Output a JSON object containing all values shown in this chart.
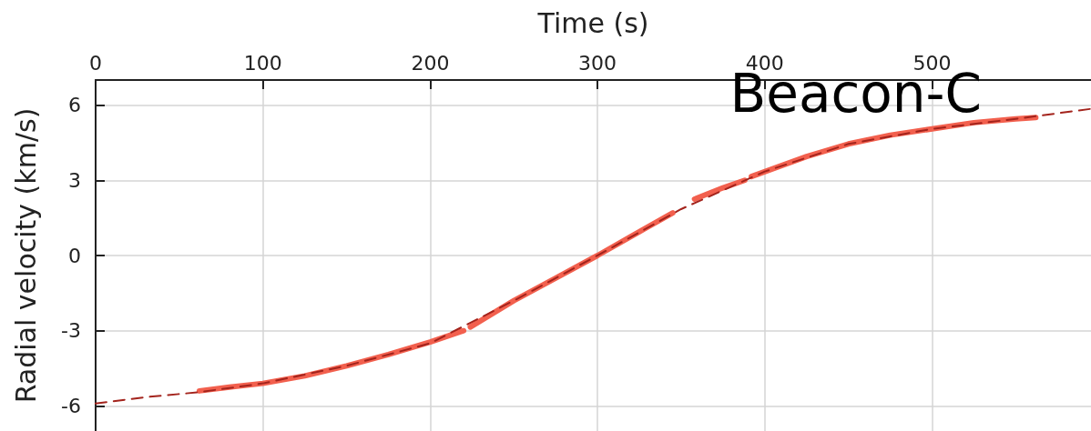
{
  "chart_data": {
    "type": "line",
    "xlabel": "Time (s)",
    "ylabel": "Radial velocity (km/s)",
    "annotations": [
      "Beacon-C"
    ],
    "xlim": [
      0,
      595
    ],
    "xticks": [
      0,
      100,
      200,
      300,
      400,
      500
    ],
    "ylim": [
      -7,
      7
    ],
    "yticks": [
      -6,
      -3,
      0,
      3,
      6
    ],
    "grid": true,
    "marker": "none",
    "series": [
      {
        "color": "#f2604e",
        "line_style": "solid",
        "x": [
          62,
          80,
          100,
          125,
          150,
          175,
          200,
          220,
          222,
          224,
          250,
          275,
          300,
          325,
          345,
          350,
          358,
          375,
          388,
          390,
          392,
          425,
          450,
          475,
          500,
          525,
          550,
          562
        ],
        "values": [
          -5.4,
          -5.25,
          -5.1,
          -4.8,
          -4.4,
          -3.95,
          -3.45,
          -3.0,
          null,
          -2.85,
          -1.8,
          -0.9,
          0,
          0.95,
          1.7,
          null,
          2.25,
          2.7,
          3.0,
          null,
          3.15,
          3.95,
          4.45,
          4.8,
          5.05,
          5.3,
          5.45,
          5.5
        ]
      },
      {
        "color": "#a3231c",
        "line_style": "dashed",
        "x": [
          0,
          30,
          62,
          100,
          150,
          200,
          250,
          300,
          350,
          400,
          450,
          500,
          550,
          595
        ],
        "values": [
          -5.9,
          -5.65,
          -5.45,
          -5.1,
          -4.4,
          -3.5,
          -1.8,
          0,
          1.85,
          3.35,
          4.45,
          5.05,
          5.45,
          5.85
        ]
      }
    ]
  }
}
